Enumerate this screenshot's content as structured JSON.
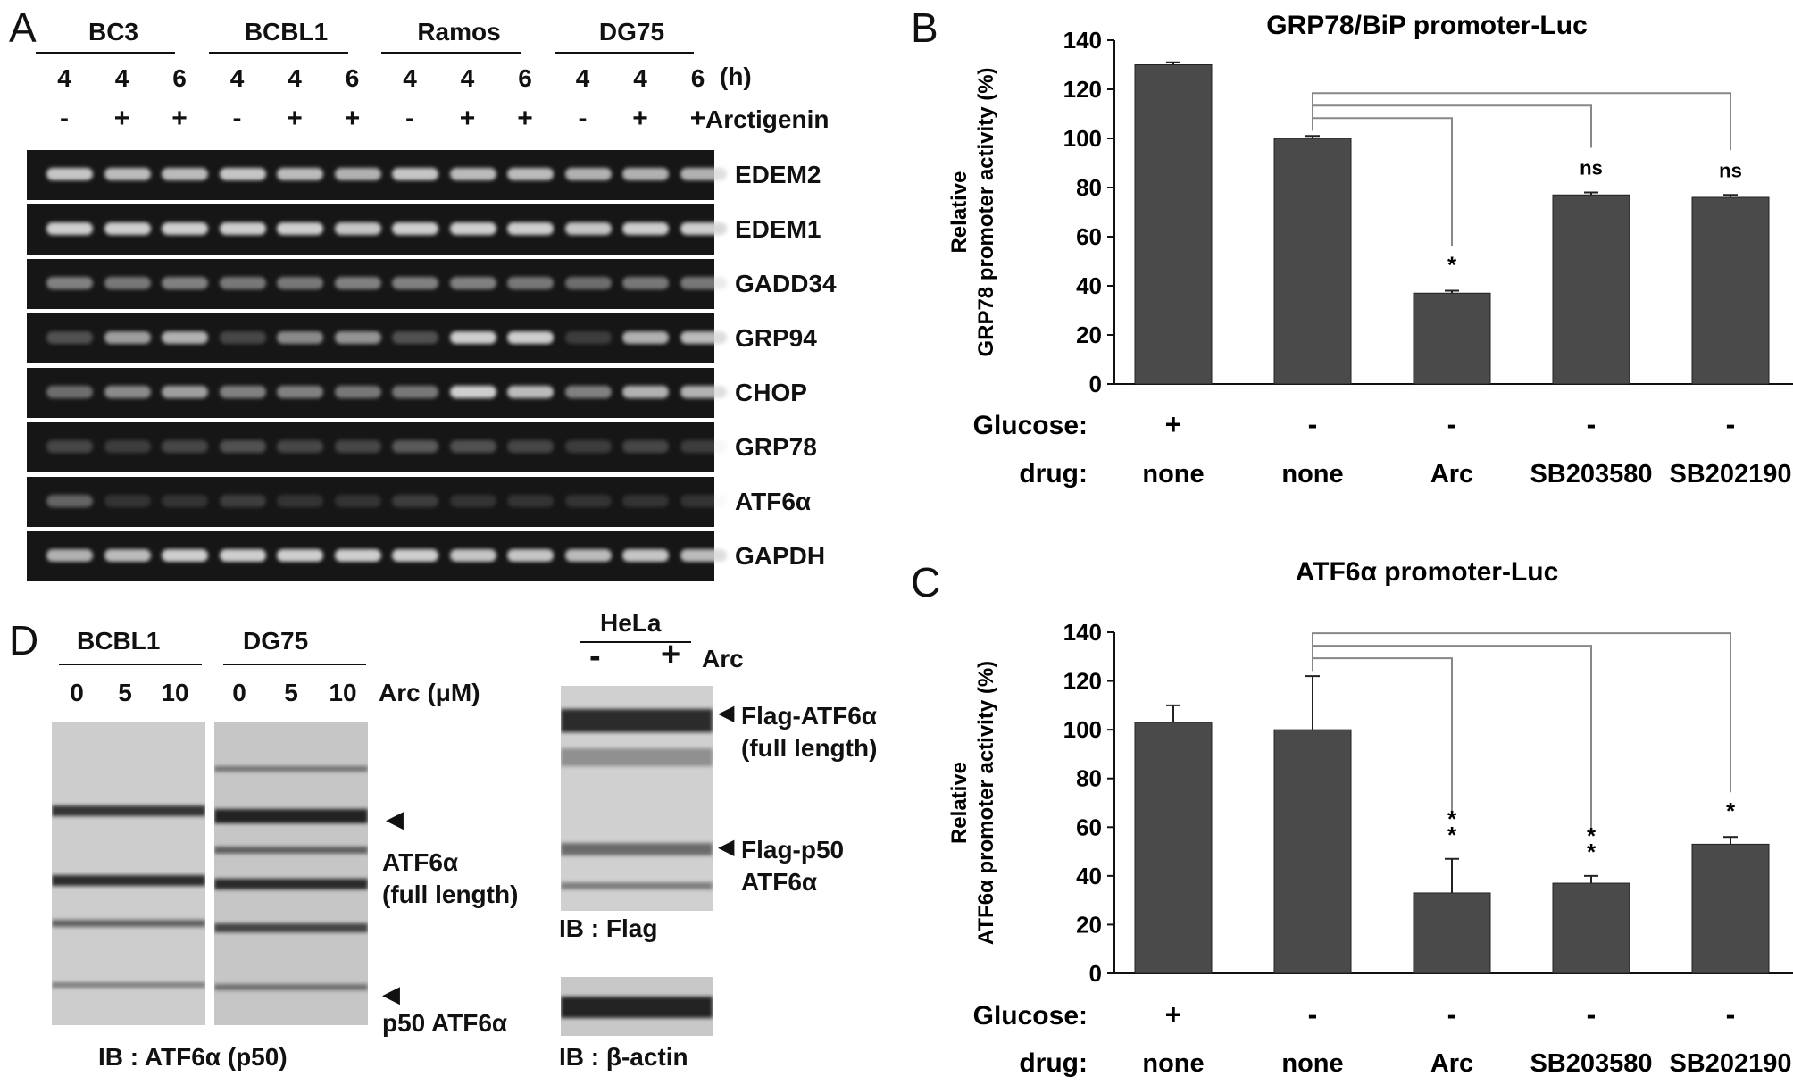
{
  "panel_a": {
    "letter": "A",
    "groups": [
      "BC3",
      "BCBL1",
      "Ramos",
      "DG75"
    ],
    "hours": [
      "4",
      "4",
      "6",
      "4",
      "4",
      "6",
      "4",
      "4",
      "6",
      "4",
      "4",
      "6"
    ],
    "hours_unit": "(h)",
    "treat": [
      "-",
      "+",
      "+",
      "-",
      "+",
      "+",
      "-",
      "+",
      "+",
      "-",
      "+",
      "+"
    ],
    "treat_label": "Arctigenin",
    "genes": [
      "EDEM2",
      "EDEM1",
      "GADD34",
      "GRP94",
      "CHOP",
      "GRP78",
      "ATF6α",
      "GAPDH"
    ],
    "band_intensity": [
      [
        0.9,
        0.85,
        0.85,
        0.9,
        0.85,
        0.8,
        0.9,
        0.85,
        0.85,
        0.8,
        0.8,
        0.8
      ],
      [
        0.95,
        0.95,
        0.95,
        0.95,
        0.95,
        0.9,
        0.95,
        0.95,
        0.95,
        0.9,
        0.95,
        0.95
      ],
      [
        0.55,
        0.5,
        0.55,
        0.5,
        0.5,
        0.55,
        0.55,
        0.55,
        0.5,
        0.45,
        0.5,
        0.5
      ],
      [
        0.3,
        0.7,
        0.8,
        0.25,
        0.6,
        0.65,
        0.3,
        0.95,
        0.95,
        0.2,
        0.8,
        0.85
      ],
      [
        0.45,
        0.6,
        0.7,
        0.55,
        0.55,
        0.5,
        0.5,
        0.95,
        0.85,
        0.55,
        0.8,
        0.8
      ],
      [
        0.25,
        0.2,
        0.25,
        0.3,
        0.25,
        0.25,
        0.35,
        0.3,
        0.25,
        0.2,
        0.25,
        0.2
      ],
      [
        0.4,
        0.15,
        0.15,
        0.2,
        0.15,
        0.15,
        0.2,
        0.15,
        0.15,
        0.15,
        0.15,
        0.15
      ],
      [
        0.8,
        0.85,
        0.95,
        0.95,
        0.95,
        0.95,
        0.95,
        0.9,
        0.9,
        0.85,
        0.9,
        0.85
      ]
    ]
  },
  "panel_b": {
    "letter": "B",
    "title": "GRP78/BiP promoter-Luc",
    "ylabel_line1": "Relative",
    "ylabel_line2": "GRP78 promoter activity (%)",
    "ticks": [
      "0",
      "20",
      "40",
      "60",
      "80",
      "100",
      "120",
      "140"
    ],
    "glucose_label": "Glucose:",
    "drug_label": "drug:",
    "glucose": [
      "+",
      "-",
      "-",
      "-",
      "-"
    ],
    "drugs": [
      "none",
      "none",
      "Arc",
      "SB203580",
      "SB202190"
    ],
    "annotations": [
      "",
      "",
      "*",
      "ns",
      "ns"
    ]
  },
  "panel_c": {
    "letter": "C",
    "title": "ATF6α promoter-Luc",
    "ylabel_line1": "Relative",
    "ylabel_line2": "ATF6α promoter activity (%)",
    "ticks": [
      "0",
      "20",
      "40",
      "60",
      "80",
      "100",
      "120",
      "140"
    ],
    "glucose_label": "Glucose:",
    "drug_label": "drug:",
    "glucose": [
      "+",
      "-",
      "-",
      "-",
      "-"
    ],
    "drugs": [
      "none",
      "none",
      "Arc",
      "SB203580",
      "SB202190"
    ],
    "annotations": [
      "",
      "",
      "**",
      "**",
      "*"
    ]
  },
  "chart_data": [
    {
      "type": "bar",
      "title": "GRP78/BiP promoter-Luc",
      "ylabel": "Relative GRP78 promoter activity (%)",
      "categories": [
        "none (+glucose)",
        "none",
        "Arc",
        "SB203580",
        "SB202190"
      ],
      "values": [
        130,
        100,
        37,
        77,
        76
      ],
      "errors": [
        1,
        1,
        1,
        1,
        1
      ],
      "ylim": [
        0,
        140
      ]
    },
    {
      "type": "bar",
      "title": "ATF6α promoter-Luc",
      "ylabel": "Relative ATF6α promoter activity (%)",
      "categories": [
        "none (+glucose)",
        "none",
        "Arc",
        "SB203580",
        "SB202190"
      ],
      "values": [
        103,
        100,
        33,
        37,
        53
      ],
      "errors": [
        7,
        22,
        14,
        3,
        3
      ],
      "ylim": [
        0,
        140
      ]
    }
  ],
  "panel_d": {
    "letter": "D",
    "groups": [
      "BCBL1",
      "DG75"
    ],
    "doses": [
      "0",
      "5",
      "10",
      "0",
      "5",
      "10"
    ],
    "dose_label": "Arc (μM)",
    "arrow_full": "ATF6α",
    "arrow_full_sub": "(full length)",
    "arrow_p50": "p50 ATF6α",
    "ib_left": "IB : ATF6α (p50)",
    "hela_label": "HeLa",
    "hela_minus": "-",
    "hela_plus": "+",
    "hela_arc": "Arc",
    "flag_full": "Flag-ATF6α",
    "flag_full_sub": "(full length)",
    "flag_p50": "Flag-p50",
    "flag_p50_sub": "ATF6α",
    "ib_flag": "IB : Flag",
    "ib_actin": "IB : β-actin"
  }
}
